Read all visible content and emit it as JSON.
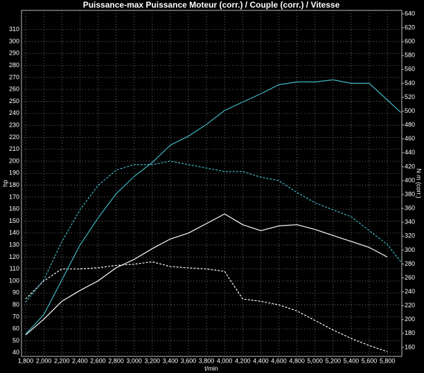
{
  "chart_data": {
    "type": "line",
    "title": "Puissance-max Puissance Moteur (corr.) / Couple (corr.) / Vitesse",
    "y_label": "hp",
    "y2_label": "N·m (corr.)",
    "x_label": "t/min",
    "x": [
      1800,
      2000,
      2200,
      2400,
      2600,
      2800,
      3000,
      3200,
      3400,
      3600,
      3800,
      4000,
      4200,
      4400,
      4600,
      4800,
      5000,
      5200,
      5400,
      5600,
      5800,
      5950
    ],
    "series": [
      {
        "color": "#ffffff",
        "dash": false,
        "axis": "y",
        "values": [
          55,
          68,
          83,
          92,
          100,
          111,
          118,
          127,
          135,
          140,
          148,
          156,
          147,
          142,
          146,
          147,
          143,
          138,
          133,
          128,
          120,
          null
        ]
      },
      {
        "color": "#ffffff",
        "dash": true,
        "axis": "y",
        "values": [
          85,
          100,
          110,
          110,
          111,
          113,
          114,
          116,
          112,
          111,
          110,
          108,
          85,
          83,
          80,
          75,
          67,
          59,
          52,
          46,
          41,
          null
        ]
      },
      {
        "color": "#3fb8c4",
        "dash": false,
        "axis": "y2",
        "values": [
          179,
          207,
          257,
          307,
          346,
          381,
          406,
          426,
          451,
          464,
          481,
          501,
          513,
          525,
          538,
          542,
          542,
          545,
          540,
          540,
          516,
          498
        ]
      },
      {
        "color": "#3fb8c4",
        "dash": true,
        "axis": "y2",
        "values": [
          225,
          257,
          312,
          358,
          393,
          415,
          423,
          423,
          428,
          423,
          418,
          413,
          413,
          405,
          400,
          383,
          368,
          358,
          348,
          328,
          308,
          283
        ]
      }
    ],
    "xlim": [
      1754,
      5960
    ],
    "xticks": [
      {
        "value": 1800,
        "label": "1,800"
      },
      {
        "value": 2000,
        "label": "2,000"
      },
      {
        "value": 2200,
        "label": "2,200"
      },
      {
        "value": 2400,
        "label": "2,400"
      },
      {
        "value": 2600,
        "label": "2,600"
      },
      {
        "value": 2800,
        "label": "2,800"
      },
      {
        "value": 3000,
        "label": "3,000"
      },
      {
        "value": 3200,
        "label": "3,200"
      },
      {
        "value": 3400,
        "label": "3,400"
      },
      {
        "value": 3600,
        "label": "3,600"
      },
      {
        "value": 3800,
        "label": "3,800"
      },
      {
        "value": 4000,
        "label": "4,000"
      },
      {
        "value": 4200,
        "label": "4,200"
      },
      {
        "value": 4400,
        "label": "4,400"
      },
      {
        "value": 4600,
        "label": "4,600"
      },
      {
        "value": 4800,
        "label": "4,800"
      },
      {
        "value": 5000,
        "label": "5,000"
      },
      {
        "value": 5200,
        "label": "5,200"
      },
      {
        "value": 5400,
        "label": "5,400"
      },
      {
        "value": 5600,
        "label": "5,600"
      },
      {
        "value": 5800,
        "label": "5,800"
      }
    ],
    "ylim": [
      37,
      326
    ],
    "yticks": [
      40,
      50,
      60,
      70,
      80,
      90,
      100,
      110,
      120,
      130,
      140,
      150,
      160,
      170,
      180,
      190,
      200,
      210,
      220,
      230,
      240,
      250,
      260,
      270,
      280,
      290,
      300,
      310
    ],
    "y2lim": [
      147,
      645
    ],
    "y2ticks": [
      160,
      180,
      200,
      220,
      240,
      260,
      280,
      300,
      320,
      340,
      360,
      380,
      400,
      420,
      440,
      460,
      480,
      500,
      520,
      540,
      560,
      580,
      600,
      620,
      640
    ],
    "grid": true
  }
}
